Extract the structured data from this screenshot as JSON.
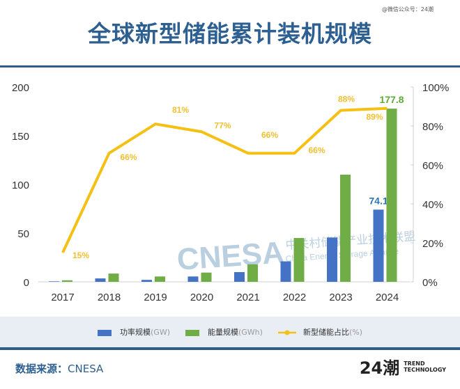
{
  "watermark": "@微信公众号：24潮",
  "title": "全球新型储能累计装机规模",
  "legend": [
    {
      "label": "功率规模",
      "unit": "(GW)",
      "color": "#4472c4",
      "icon": "bar-swatch"
    },
    {
      "label": "能量规模",
      "unit": "(GWh)",
      "color": "#70ad47",
      "icon": "bar-swatch"
    },
    {
      "label": "新型储能占比",
      "unit": "(%)",
      "color": "#f5c014",
      "icon": "line-marker"
    }
  ],
  "source": {
    "label": "数据来源：",
    "value": "CNESA"
  },
  "brand": {
    "mark": "24潮",
    "line1": "TREND",
    "line2": "TECHNOLOGY"
  },
  "chart_watermark": {
    "logo": "CNESA",
    "cn": "中关村储能产业技术联盟",
    "en": "China Energy Storage Alliance"
  },
  "chart_data": {
    "type": "bar+line",
    "categories": [
      "2017",
      "2018",
      "2019",
      "2020",
      "2021",
      "2022",
      "2023",
      "2024"
    ],
    "series": [
      {
        "name": "功率规模(GW)",
        "type": "bar",
        "axis": "left",
        "color": "#4472c4",
        "values": [
          0.5,
          3.5,
          2,
          5.5,
          10,
          21,
          45.5,
          74.1
        ],
        "labels": [
          null,
          null,
          null,
          null,
          null,
          null,
          null,
          "74.1"
        ]
      },
      {
        "name": "能量规模(GWh)",
        "type": "bar",
        "axis": "left",
        "color": "#70ad47",
        "values": [
          1.6,
          8.5,
          5.5,
          9.5,
          18,
          45,
          110,
          177.8
        ],
        "labels": [
          null,
          null,
          null,
          null,
          null,
          null,
          null,
          "177.8"
        ]
      },
      {
        "name": "新型储能占比(%)",
        "type": "line",
        "axis": "right",
        "color": "#f5c014",
        "values": [
          15,
          66,
          81,
          77,
          66,
          66,
          88,
          89
        ],
        "labels": [
          "15%",
          "66%",
          "81%",
          "77%",
          "66%",
          "66%",
          "88%",
          "89%"
        ]
      }
    ],
    "left_axis": {
      "ylim": [
        0,
        200
      ],
      "ticks": [
        "0",
        "50",
        "100",
        "150",
        "200"
      ]
    },
    "right_axis": {
      "ylim": [
        0,
        100
      ],
      "ticks": [
        "0%",
        "20%",
        "40%",
        "60%",
        "80%",
        "100%"
      ]
    },
    "grid": false,
    "legend_placement": "bottom"
  }
}
